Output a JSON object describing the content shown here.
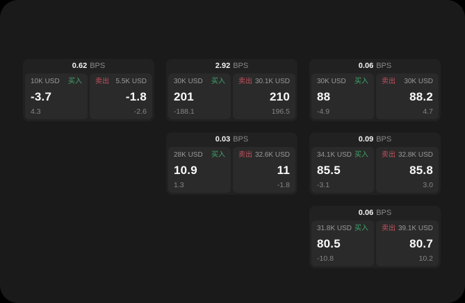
{
  "labels": {
    "bps_unit": "BPS",
    "buy": "买入",
    "sell": "卖出"
  },
  "colors": {
    "buy": "#3fa56b",
    "sell": "#c4515f",
    "window_bg": "#1a1a1a",
    "card_bg": "#212121",
    "panel_bg": "#2a2a2a"
  },
  "cards": [
    {
      "col": 1,
      "row": 1,
      "bps": "0.62",
      "buy": {
        "amount": "10K USD",
        "main": "-3.7",
        "sub": "4.3"
      },
      "sell": {
        "amount": "5.5K USD",
        "main": "-1.8",
        "sub": "-2.6"
      }
    },
    {
      "col": 2,
      "row": 1,
      "bps": "2.92",
      "buy": {
        "amount": "30K USD",
        "main": "201",
        "sub": "-188.1"
      },
      "sell": {
        "amount": "30.1K USD",
        "main": "210",
        "sub": "196.5"
      }
    },
    {
      "col": 3,
      "row": 1,
      "bps": "0.06",
      "buy": {
        "amount": "30K USD",
        "main": "88",
        "sub": "-4.9"
      },
      "sell": {
        "amount": "30K USD",
        "main": "88.2",
        "sub": "4.7"
      }
    },
    {
      "col": 2,
      "row": 2,
      "bps": "0.03",
      "buy": {
        "amount": "28K USD",
        "main": "10.9",
        "sub": "1.3"
      },
      "sell": {
        "amount": "32.6K USD",
        "main": "11",
        "sub": "-1.8"
      }
    },
    {
      "col": 3,
      "row": 2,
      "bps": "0.09",
      "buy": {
        "amount": "34.1K USD",
        "main": "85.5",
        "sub": "-3.1"
      },
      "sell": {
        "amount": "32.8K USD",
        "main": "85.8",
        "sub": "3.0"
      }
    },
    {
      "col": 3,
      "row": 3,
      "bps": "0.06",
      "buy": {
        "amount": "31.8K USD",
        "main": "80.5",
        "sub": "-10.8"
      },
      "sell": {
        "amount": "39.1K USD",
        "main": "80.7",
        "sub": "10.2"
      }
    }
  ]
}
